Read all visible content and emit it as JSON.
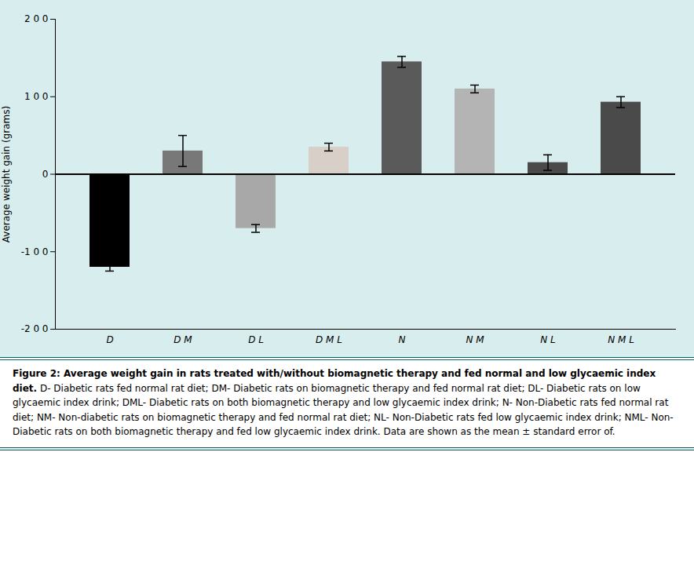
{
  "chart_data": {
    "type": "bar",
    "title": "Figure 2: Average weight gain in rats treated with/without biomagnetic therapy and fed normal and low glycaemic index diet.",
    "caption": "D- Diabetic rats fed normal rat diet; DM- Diabetic rats on biomagnetic therapy and fed normal rat diet; DL- Diabetic rats on low glycaemic index drink; DML- Diabetic rats on both biomagnetic therapy and low glycaemic index drink; N- Non-Diabetic rats fed normal rat diet; NM- Non-diabetic rats on biomagnetic therapy and fed normal rat diet; NL- Non-Diabetic rats fed low glycaemic index drink; NML- Non-Diabetic rats on both biomagnetic therapy and fed low glycaemic index drink. Data are shown as the mean ± standard error of.",
    "ylabel": "Average weight gain (grams)",
    "categories": [
      "D",
      "D M",
      "D L",
      "D M L",
      "N",
      "N M",
      "N L",
      "N M L"
    ],
    "values": [
      -120,
      30,
      -70,
      35,
      145,
      110,
      15,
      93
    ],
    "errors": [
      5,
      20,
      5,
      5,
      7,
      5,
      10,
      7
    ],
    "colors": [
      "#000000",
      "#787878",
      "#a8a8a8",
      "#d8cfc8",
      "#5a5a5a",
      "#b4b4b4",
      "#4a4a4a",
      "#4a4a4a"
    ],
    "ylim": [
      -200,
      200
    ],
    "yticks": [
      {
        "value": -200,
        "label": "-2 0 0"
      },
      {
        "value": -100,
        "label": "-1 0 0"
      },
      0,
      {
        "value": 100,
        "label": "1 0 0"
      },
      {
        "value": 200,
        "label": "2 0 0"
      }
    ],
    "grid": false
  }
}
